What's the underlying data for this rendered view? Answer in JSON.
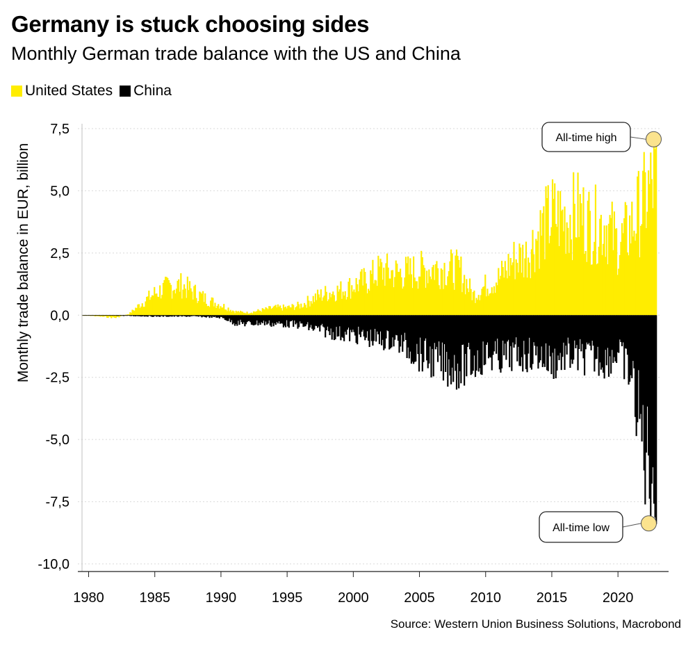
{
  "title": "Germany is stuck choosing sides",
  "subtitle": "Monthly German trade balance with the US and China",
  "source": "Source: Western Union Business Solutions, Macrobond",
  "legend": [
    {
      "label": "United States",
      "color": "#FFED00"
    },
    {
      "label": "China",
      "color": "#000000"
    }
  ],
  "annotations": {
    "high": "All-time high",
    "low": "All-time low"
  },
  "chart_data": {
    "type": "bar",
    "ylabel": "Monthly trade balance in EUR, billion",
    "ylim": [
      -10,
      7.5
    ],
    "yticks": [
      "7,5",
      "5,0",
      "2,5",
      "0,0",
      "-2,5",
      "-5,0",
      "-7,5",
      "-10,0"
    ],
    "xticks": [
      "1980",
      "1985",
      "1990",
      "1995",
      "2000",
      "2005",
      "2010",
      "2015",
      "2020"
    ],
    "x_range": [
      1979.5,
      2023.3
    ],
    "frequency": "monthly",
    "series": [
      {
        "name": "United States",
        "color": "#FFED00",
        "x": [
          1979.5,
          1982,
          1983,
          1984,
          1985,
          1986,
          1987,
          1988,
          1989,
          1990,
          1991,
          1992,
          1993,
          1994,
          1995,
          1996,
          1997,
          1998,
          1999,
          2000,
          2001,
          2002,
          2003,
          2004,
          2005,
          2006,
          2007,
          2008,
          2009,
          2010,
          2011,
          2012,
          2013,
          2014,
          2015,
          2016,
          2017,
          2018,
          2019,
          2020,
          2021,
          2022.8
        ],
        "values": [
          0.0,
          -0.1,
          0.05,
          0.5,
          0.9,
          1.15,
          1.2,
          0.9,
          0.6,
          0.4,
          0.15,
          0.1,
          0.2,
          0.3,
          0.3,
          0.4,
          0.7,
          0.9,
          1.0,
          1.2,
          1.4,
          1.8,
          1.7,
          1.7,
          1.8,
          1.9,
          1.9,
          1.8,
          0.8,
          1.2,
          1.5,
          2.2,
          2.4,
          3.3,
          4.0,
          3.9,
          4.1,
          3.6,
          3.7,
          2.8,
          3.6,
          5.5
        ],
        "max": 7.1
      },
      {
        "name": "China",
        "color": "#000000",
        "x": [
          1979.5,
          1982,
          1985,
          1988,
          1990,
          1991,
          1992,
          1993,
          1994,
          1995,
          1996,
          1997,
          1998,
          1999,
          2000,
          2001,
          2002,
          2003,
          2004,
          2005,
          2006,
          2007,
          2008,
          2009,
          2010,
          2011,
          2012,
          2013,
          2014,
          2015,
          2016,
          2017,
          2018,
          2019,
          2020,
          2021,
          2022,
          2022.8
        ],
        "values": [
          0.0,
          -0.02,
          -0.05,
          -0.05,
          -0.1,
          -0.3,
          -0.35,
          -0.3,
          -0.35,
          -0.35,
          -0.4,
          -0.55,
          -0.65,
          -0.75,
          -0.8,
          -0.9,
          -1.0,
          -1.0,
          -1.3,
          -1.6,
          -1.8,
          -2.0,
          -2.1,
          -1.9,
          -1.6,
          -1.7,
          -1.6,
          -1.6,
          -1.6,
          -1.9,
          -1.6,
          -1.7,
          -1.7,
          -1.8,
          -1.5,
          -2.5,
          -5.5,
          -6.5
        ],
        "min": -8.4
      }
    ]
  }
}
